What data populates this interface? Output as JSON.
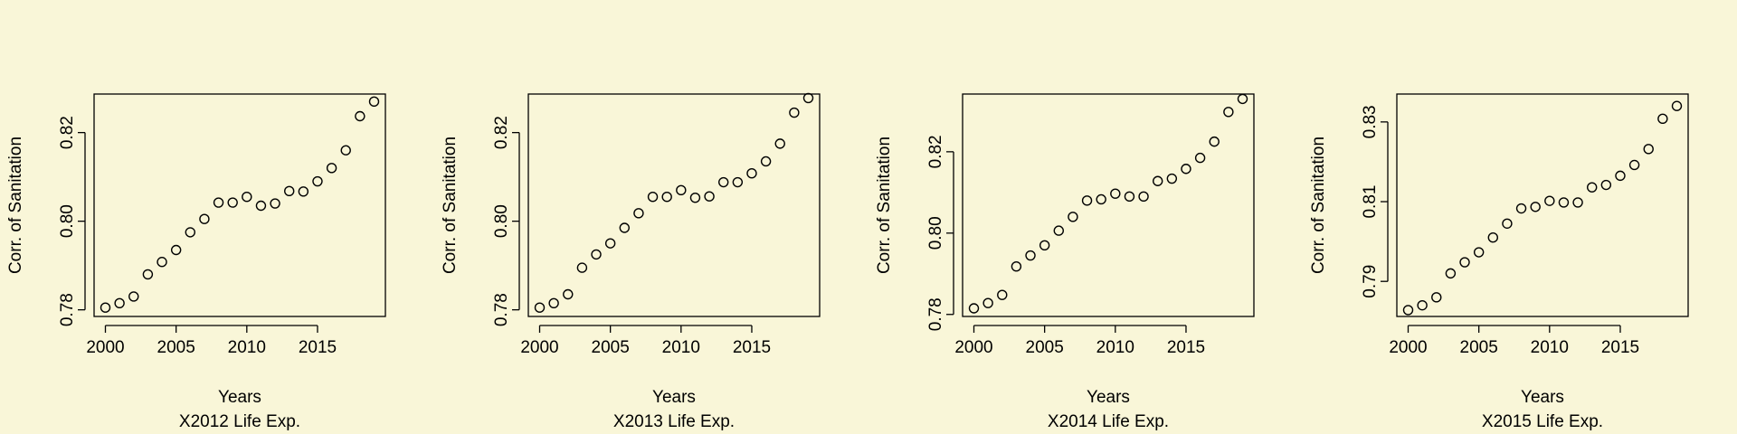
{
  "page": {
    "background": "#f9f6d8",
    "foreground": "#000000"
  },
  "chart_data": [
    {
      "type": "scatter",
      "title": "",
      "xlabel": "Years",
      "subtitle": "X2012 Life Exp.",
      "ylabel": "Corr. of Sanitation",
      "xlim": [
        1999.2,
        2019.8
      ],
      "ylim": [
        0.7785,
        0.8287
      ],
      "xticks": [
        2000,
        2005,
        2010,
        2015
      ],
      "yticks": [
        0.78,
        0.8,
        0.82
      ],
      "ytick_labels": [
        "0.78",
        "0.80",
        "0.82"
      ],
      "grid": false,
      "x": [
        2000,
        2001,
        2002,
        2003,
        2004,
        2005,
        2006,
        2007,
        2008,
        2009,
        2010,
        2011,
        2012,
        2013,
        2014,
        2015,
        2016,
        2017,
        2018,
        2019
      ],
      "y": [
        0.7805,
        0.7815,
        0.783,
        0.788,
        0.7908,
        0.7935,
        0.7975,
        0.8005,
        0.8042,
        0.8042,
        0.8055,
        0.8035,
        0.804,
        0.8068,
        0.8067,
        0.809,
        0.812,
        0.816,
        0.8237,
        0.827
      ]
    },
    {
      "type": "scatter",
      "title": "",
      "xlabel": "Years",
      "subtitle": "X2013 Life Exp.",
      "ylabel": "Corr. of Sanitation",
      "xlim": [
        1999.2,
        2019.8
      ],
      "ylim": [
        0.7785,
        0.8287
      ],
      "xticks": [
        2000,
        2005,
        2010,
        2015
      ],
      "yticks": [
        0.78,
        0.8,
        0.82
      ],
      "ytick_labels": [
        "0.78",
        "0.80",
        "0.82"
      ],
      "grid": false,
      "x": [
        2000,
        2001,
        2002,
        2003,
        2004,
        2005,
        2006,
        2007,
        2008,
        2009,
        2010,
        2011,
        2012,
        2013,
        2014,
        2015,
        2016,
        2017,
        2018,
        2019
      ],
      "y": [
        0.7805,
        0.7815,
        0.7835,
        0.7895,
        0.7925,
        0.795,
        0.7985,
        0.8018,
        0.8055,
        0.8055,
        0.807,
        0.8053,
        0.8056,
        0.8088,
        0.8088,
        0.8108,
        0.8135,
        0.8175,
        0.8245,
        0.8278
      ]
    },
    {
      "type": "scatter",
      "title": "",
      "xlabel": "Years",
      "subtitle": "X2014 Life Exp.",
      "ylabel": "Corr. of Sanitation",
      "xlim": [
        1999.2,
        2019.8
      ],
      "ylim": [
        0.7795,
        0.8342
      ],
      "xticks": [
        2000,
        2005,
        2010,
        2015
      ],
      "yticks": [
        0.78,
        0.8,
        0.82
      ],
      "ytick_labels": [
        "0.78",
        "0.80",
        "0.82"
      ],
      "grid": false,
      "x": [
        2000,
        2001,
        2002,
        2003,
        2004,
        2005,
        2006,
        2007,
        2008,
        2009,
        2010,
        2011,
        2012,
        2013,
        2014,
        2015,
        2016,
        2017,
        2018,
        2019
      ],
      "y": [
        0.7815,
        0.7828,
        0.7848,
        0.7918,
        0.7945,
        0.797,
        0.8006,
        0.804,
        0.808,
        0.8083,
        0.8097,
        0.809,
        0.809,
        0.8128,
        0.8134,
        0.8158,
        0.8185,
        0.8225,
        0.8298,
        0.833
      ]
    },
    {
      "type": "scatter",
      "title": "",
      "xlabel": "Years",
      "subtitle": "X2015 Life Exp.",
      "ylabel": "Corr. of Sanitation",
      "xlim": [
        1999.2,
        2019.8
      ],
      "ylim": [
        0.7812,
        0.837
      ],
      "xticks": [
        2000,
        2005,
        2010,
        2015
      ],
      "yticks": [
        0.79,
        0.81,
        0.83
      ],
      "ytick_labels": [
        "0.79",
        "0.81",
        "0.83"
      ],
      "grid": false,
      "x": [
        2000,
        2001,
        2002,
        2003,
        2004,
        2005,
        2006,
        2007,
        2008,
        2009,
        2010,
        2011,
        2012,
        2013,
        2014,
        2015,
        2016,
        2017,
        2018,
        2019
      ],
      "y": [
        0.7828,
        0.784,
        0.786,
        0.792,
        0.7948,
        0.7973,
        0.801,
        0.8045,
        0.8083,
        0.8087,
        0.8102,
        0.8098,
        0.8098,
        0.8136,
        0.8142,
        0.8165,
        0.8192,
        0.8232,
        0.8308,
        0.834
      ]
    }
  ]
}
